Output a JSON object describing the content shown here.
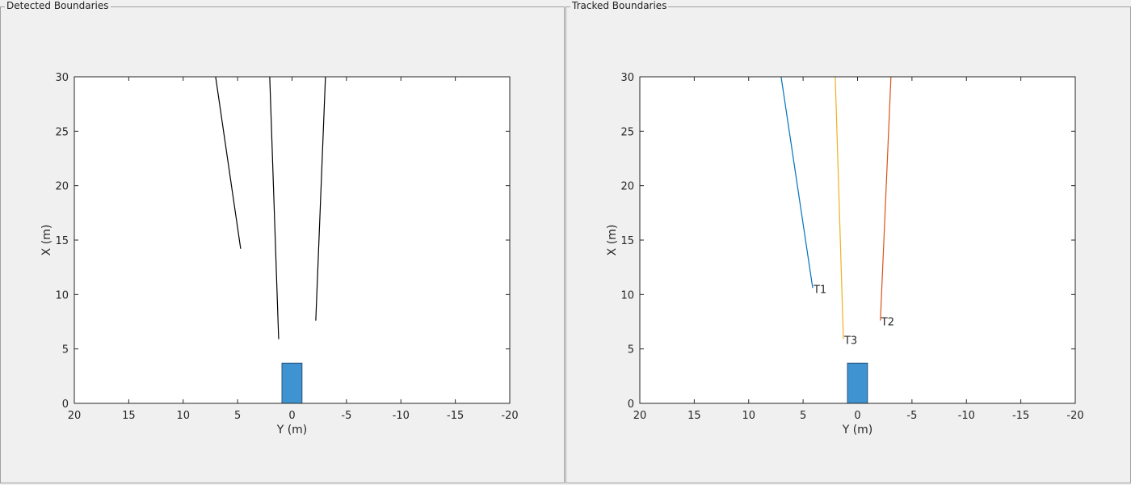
{
  "panels": [
    {
      "title": "Detected Boundaries"
    },
    {
      "title": "Tracked Boundaries"
    }
  ],
  "chart_data": [
    {
      "type": "line",
      "xlabel": "Y (m)",
      "ylabel": "X (m)",
      "xlim": [
        20,
        -20
      ],
      "x_reversed": true,
      "ylim": [
        0,
        30
      ],
      "xticks": [
        "20",
        "15",
        "10",
        "5",
        "0",
        "-5",
        "-10",
        "-15",
        "-20"
      ],
      "yticks": [
        "0",
        "5",
        "10",
        "15",
        "20",
        "25",
        "30"
      ],
      "grid": false,
      "series": [
        {
          "color": "#000000",
          "x": [
            7.02,
            4.72
          ],
          "y": [
            30,
            14.2
          ]
        },
        {
          "color": "#000000",
          "x": [
            2.05,
            1.23
          ],
          "y": [
            30,
            5.9
          ]
        },
        {
          "color": "#000000",
          "x": [
            -3.07,
            -2.18
          ],
          "y": [
            30,
            7.6
          ]
        }
      ],
      "ego_vehicle": {
        "color": "#3f93d0",
        "y_range": [
          0.93,
          -0.92
        ],
        "x_range": [
          0,
          3.7
        ]
      }
    },
    {
      "type": "line",
      "xlabel": "Y (m)",
      "ylabel": "X (m)",
      "xlim": [
        20,
        -20
      ],
      "x_reversed": true,
      "ylim": [
        0,
        30
      ],
      "xticks": [
        "20",
        "15",
        "10",
        "5",
        "0",
        "-5",
        "-10",
        "-15",
        "-20"
      ],
      "yticks": [
        "0",
        "5",
        "10",
        "15",
        "20",
        "25",
        "30"
      ],
      "grid": false,
      "series": [
        {
          "label": "T1",
          "color": "#0072bd",
          "x": [
            7.02,
            4.12
          ],
          "y": [
            30,
            10.6
          ]
        },
        {
          "label": "T2",
          "color": "#d95319",
          "x": [
            -3.07,
            -2.1
          ],
          "y": [
            30,
            7.6
          ]
        },
        {
          "label": "T3",
          "color": "#edb120",
          "x": [
            2.05,
            1.3
          ],
          "y": [
            30,
            5.9
          ]
        }
      ],
      "ego_vehicle": {
        "color": "#3f93d0",
        "y_range": [
          0.93,
          -0.92
        ],
        "x_range": [
          0,
          3.7
        ]
      }
    }
  ]
}
